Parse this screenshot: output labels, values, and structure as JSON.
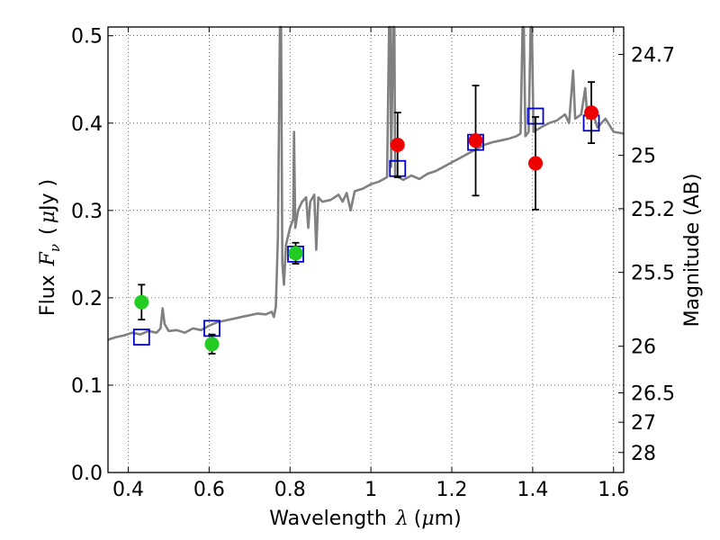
{
  "chart_data": {
    "type": "scatter",
    "title": "",
    "xlabel_text": "Wavelength",
    "xlabel_symbol": "λ",
    "xlabel_unit_open": "(",
    "xlabel_unit_mu": "μ",
    "xlabel_unit_rest": "m)",
    "ylabel_text": "Flux",
    "ylabel_symbol": "F",
    "ylabel_sub": "ν",
    "ylabel_unit_open": "(",
    "ylabel_unit_mu": "μ",
    "ylabel_unit_rest": "Jy )",
    "y2label": "Magnitude (AB)",
    "xlim": [
      0.35,
      1.625
    ],
    "ylim": [
      0.0,
      0.51
    ],
    "grid": true,
    "x_ticks": [
      0.4,
      0.6,
      0.8,
      1.0,
      1.2,
      1.4,
      1.6
    ],
    "x_tick_labels": [
      "0.4",
      "0.6",
      "0.8",
      "1",
      "1.2",
      "1.4",
      "1.6"
    ],
    "y_ticks": [
      0.0,
      0.1,
      0.2,
      0.3,
      0.4,
      0.5
    ],
    "y_tick_labels": [
      "0.0",
      "0.1",
      "0.2",
      "0.3",
      "0.4",
      "0.5"
    ],
    "y2_ticks": [
      {
        "mag": 24.7,
        "label": "24.7"
      },
      {
        "mag": 25,
        "label": "25"
      },
      {
        "mag": 25.2,
        "label": "25.2"
      },
      {
        "mag": 25.5,
        "label": "25.5"
      },
      {
        "mag": 26,
        "label": "26"
      },
      {
        "mag": 26.5,
        "label": "26.5"
      },
      {
        "mag": 27,
        "label": "27"
      },
      {
        "mag": 28,
        "label": "28"
      }
    ],
    "series": [
      {
        "name": "model_spectrum",
        "kind": "line",
        "color": "#808080",
        "points": [
          [
            0.35,
            0.152
          ],
          [
            0.37,
            0.155
          ],
          [
            0.39,
            0.157
          ],
          [
            0.41,
            0.16
          ],
          [
            0.43,
            0.158
          ],
          [
            0.45,
            0.162
          ],
          [
            0.47,
            0.16
          ],
          [
            0.48,
            0.165
          ],
          [
            0.485,
            0.188
          ],
          [
            0.49,
            0.17
          ],
          [
            0.5,
            0.162
          ],
          [
            0.52,
            0.163
          ],
          [
            0.54,
            0.16
          ],
          [
            0.56,
            0.165
          ],
          [
            0.58,
            0.163
          ],
          [
            0.6,
            0.168
          ],
          [
            0.62,
            0.172
          ],
          [
            0.64,
            0.174
          ],
          [
            0.66,
            0.176
          ],
          [
            0.68,
            0.178
          ],
          [
            0.7,
            0.18
          ],
          [
            0.72,
            0.182
          ],
          [
            0.74,
            0.181
          ],
          [
            0.755,
            0.184
          ],
          [
            0.76,
            0.178
          ],
          [
            0.765,
            0.19
          ],
          [
            0.77,
            0.27
          ],
          [
            0.775,
            0.51
          ],
          [
            0.778,
            0.51
          ],
          [
            0.781,
            0.24
          ],
          [
            0.785,
            0.215
          ],
          [
            0.79,
            0.26
          ],
          [
            0.8,
            0.28
          ],
          [
            0.808,
            0.29
          ],
          [
            0.81,
            0.39
          ],
          [
            0.813,
            0.28
          ],
          [
            0.82,
            0.3
          ],
          [
            0.83,
            0.31
          ],
          [
            0.84,
            0.315
          ],
          [
            0.845,
            0.28
          ],
          [
            0.85,
            0.31
          ],
          [
            0.86,
            0.318
          ],
          [
            0.865,
            0.255
          ],
          [
            0.87,
            0.315
          ],
          [
            0.88,
            0.31
          ],
          [
            0.9,
            0.312
          ],
          [
            0.92,
            0.318
          ],
          [
            0.93,
            0.31
          ],
          [
            0.94,
            0.32
          ],
          [
            0.95,
            0.3
          ],
          [
            0.96,
            0.322
          ],
          [
            0.98,
            0.325
          ],
          [
            1.0,
            0.33
          ],
          [
            1.02,
            0.333
          ],
          [
            1.04,
            0.338
          ],
          [
            1.045,
            0.51
          ],
          [
            1.048,
            0.51
          ],
          [
            1.05,
            0.35
          ],
          [
            1.055,
            0.51
          ],
          [
            1.058,
            0.51
          ],
          [
            1.06,
            0.34
          ],
          [
            1.08,
            0.335
          ],
          [
            1.1,
            0.34
          ],
          [
            1.12,
            0.336
          ],
          [
            1.14,
            0.342
          ],
          [
            1.16,
            0.345
          ],
          [
            1.18,
            0.35
          ],
          [
            1.2,
            0.355
          ],
          [
            1.22,
            0.36
          ],
          [
            1.24,
            0.365
          ],
          [
            1.26,
            0.37
          ],
          [
            1.28,
            0.375
          ],
          [
            1.3,
            0.378
          ],
          [
            1.32,
            0.38
          ],
          [
            1.34,
            0.382
          ],
          [
            1.36,
            0.385
          ],
          [
            1.37,
            0.388
          ],
          [
            1.375,
            0.51
          ],
          [
            1.378,
            0.51
          ],
          [
            1.382,
            0.385
          ],
          [
            1.39,
            0.39
          ],
          [
            1.395,
            0.51
          ],
          [
            1.398,
            0.51
          ],
          [
            1.402,
            0.39
          ],
          [
            1.42,
            0.395
          ],
          [
            1.44,
            0.4
          ],
          [
            1.46,
            0.403
          ],
          [
            1.48,
            0.41
          ],
          [
            1.49,
            0.4
          ],
          [
            1.5,
            0.46
          ],
          [
            1.505,
            0.405
          ],
          [
            1.52,
            0.41
          ],
          [
            1.53,
            0.44
          ],
          [
            1.535,
            0.405
          ],
          [
            1.55,
            0.41
          ],
          [
            1.56,
            0.395
          ],
          [
            1.58,
            0.405
          ],
          [
            1.6,
            0.39
          ],
          [
            1.625,
            0.388
          ]
        ]
      },
      {
        "name": "model_photometry",
        "kind": "square",
        "color": "#0000cc",
        "points": [
          [
            0.433,
            0.155
          ],
          [
            0.607,
            0.165
          ],
          [
            0.814,
            0.25
          ],
          [
            1.066,
            0.348
          ],
          [
            1.259,
            0.378
          ],
          [
            1.407,
            0.408
          ],
          [
            1.545,
            0.4
          ]
        ]
      },
      {
        "name": "observed_optical",
        "kind": "point",
        "color": "#22cc22",
        "points": [
          {
            "x": 0.433,
            "y": 0.195,
            "err": 0.02
          },
          {
            "x": 0.607,
            "y": 0.147,
            "err": 0.011
          },
          {
            "x": 0.814,
            "y": 0.251,
            "err": 0.012
          }
        ]
      },
      {
        "name": "observed_nir",
        "kind": "point",
        "color": "#ee0000",
        "points": [
          {
            "x": 1.066,
            "y": 0.375,
            "err": 0.037
          },
          {
            "x": 1.259,
            "y": 0.38,
            "err": 0.063
          },
          {
            "x": 1.407,
            "y": 0.354,
            "err": 0.053
          },
          {
            "x": 1.545,
            "y": 0.412,
            "err": 0.035
          }
        ]
      }
    ]
  }
}
